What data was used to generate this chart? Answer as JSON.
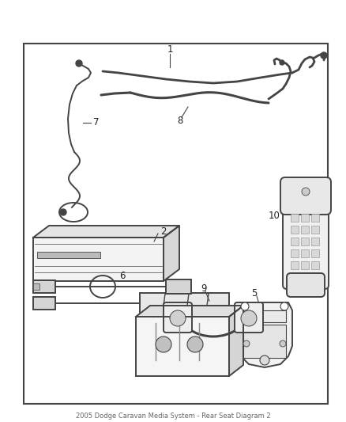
{
  "fig_width": 4.38,
  "fig_height": 5.33,
  "dpi": 100,
  "background": "#ffffff",
  "border_color": "#444444",
  "line_color": "#444444",
  "label_color": "#222222",
  "lw": 1.4,
  "border": [
    30,
    55,
    415,
    510
  ]
}
